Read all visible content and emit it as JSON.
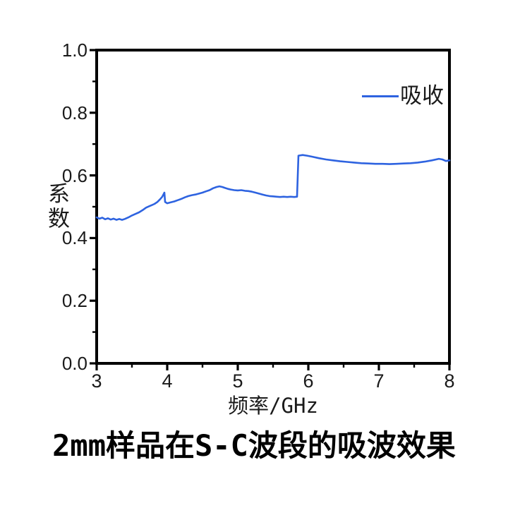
{
  "caption": "2mm样品在S-C波段的吸波效果",
  "colors": {
    "line": "#2e63e0",
    "axis": "#000000",
    "text": "#1a1a1a",
    "background": "#ffffff"
  },
  "chart_data": {
    "type": "line",
    "title": "2mm样品在S-C波段的吸波效果",
    "xlabel": "频率/GHz",
    "ylabel": "系数",
    "xlim": [
      3,
      8
    ],
    "ylim": [
      0.0,
      1.0
    ],
    "xticks": [
      3,
      4,
      5,
      6,
      7,
      8
    ],
    "xtick_labels": [
      "3",
      "4",
      "5",
      "6",
      "7",
      "8"
    ],
    "x_minor_ticks": [
      3.5,
      4.5,
      5.5,
      6.5,
      7.5
    ],
    "yticks": [
      0.0,
      0.2,
      0.4,
      0.6,
      0.8,
      1.0
    ],
    "ytick_labels": [
      "0.0",
      "0.2",
      "0.4",
      "0.6",
      "0.8",
      "1.0"
    ],
    "y_minor_ticks": [
      0.1,
      0.3,
      0.5,
      0.7,
      0.9
    ],
    "grid": false,
    "legend_position": "upper-right-inside",
    "series": [
      {
        "name": "吸收",
        "color": "#2e63e0",
        "points": [
          [
            3.0,
            0.466
          ],
          [
            3.04,
            0.462
          ],
          [
            3.08,
            0.465
          ],
          [
            3.12,
            0.46
          ],
          [
            3.16,
            0.463
          ],
          [
            3.2,
            0.459
          ],
          [
            3.24,
            0.462
          ],
          [
            3.28,
            0.458
          ],
          [
            3.32,
            0.461
          ],
          [
            3.36,
            0.458
          ],
          [
            3.4,
            0.461
          ],
          [
            3.45,
            0.466
          ],
          [
            3.5,
            0.472
          ],
          [
            3.55,
            0.477
          ],
          [
            3.6,
            0.482
          ],
          [
            3.65,
            0.489
          ],
          [
            3.7,
            0.497
          ],
          [
            3.75,
            0.502
          ],
          [
            3.78,
            0.505
          ],
          [
            3.82,
            0.509
          ],
          [
            3.86,
            0.515
          ],
          [
            3.9,
            0.524
          ],
          [
            3.93,
            0.532
          ],
          [
            3.96,
            0.545
          ],
          [
            3.97,
            0.515
          ],
          [
            4.0,
            0.511
          ],
          [
            4.05,
            0.514
          ],
          [
            4.1,
            0.517
          ],
          [
            4.15,
            0.521
          ],
          [
            4.2,
            0.525
          ],
          [
            4.25,
            0.53
          ],
          [
            4.3,
            0.534
          ],
          [
            4.35,
            0.537
          ],
          [
            4.4,
            0.539
          ],
          [
            4.45,
            0.542
          ],
          [
            4.5,
            0.545
          ],
          [
            4.55,
            0.549
          ],
          [
            4.6,
            0.553
          ],
          [
            4.65,
            0.559
          ],
          [
            4.7,
            0.563
          ],
          [
            4.74,
            0.565
          ],
          [
            4.78,
            0.563
          ],
          [
            4.82,
            0.56
          ],
          [
            4.86,
            0.557
          ],
          [
            4.9,
            0.555
          ],
          [
            4.95,
            0.553
          ],
          [
            5.0,
            0.552
          ],
          [
            5.05,
            0.553
          ],
          [
            5.1,
            0.551
          ],
          [
            5.15,
            0.55
          ],
          [
            5.2,
            0.548
          ],
          [
            5.25,
            0.545
          ],
          [
            5.3,
            0.542
          ],
          [
            5.35,
            0.539
          ],
          [
            5.4,
            0.536
          ],
          [
            5.45,
            0.534
          ],
          [
            5.5,
            0.533
          ],
          [
            5.55,
            0.532
          ],
          [
            5.6,
            0.531
          ],
          [
            5.65,
            0.532
          ],
          [
            5.7,
            0.531
          ],
          [
            5.75,
            0.532
          ],
          [
            5.8,
            0.531
          ],
          [
            5.84,
            0.532
          ],
          [
            5.86,
            0.663
          ],
          [
            5.92,
            0.665
          ],
          [
            5.98,
            0.663
          ],
          [
            6.05,
            0.66
          ],
          [
            6.15,
            0.655
          ],
          [
            6.25,
            0.651
          ],
          [
            6.35,
            0.648
          ],
          [
            6.45,
            0.645
          ],
          [
            6.55,
            0.643
          ],
          [
            6.65,
            0.641
          ],
          [
            6.75,
            0.639
          ],
          [
            6.85,
            0.638
          ],
          [
            6.95,
            0.637
          ],
          [
            7.05,
            0.637
          ],
          [
            7.15,
            0.636
          ],
          [
            7.25,
            0.637
          ],
          [
            7.35,
            0.638
          ],
          [
            7.45,
            0.639
          ],
          [
            7.55,
            0.641
          ],
          [
            7.65,
            0.644
          ],
          [
            7.75,
            0.648
          ],
          [
            7.85,
            0.653
          ],
          [
            7.9,
            0.651
          ],
          [
            7.95,
            0.646
          ],
          [
            8.0,
            0.648
          ]
        ]
      }
    ]
  }
}
